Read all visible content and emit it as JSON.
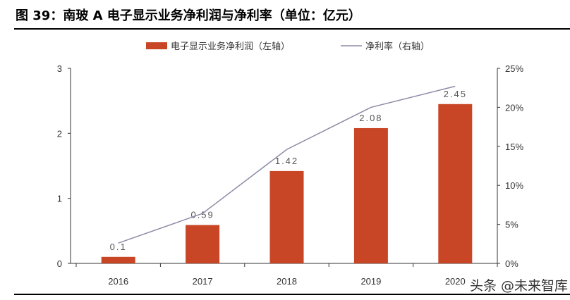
{
  "title": "图 39：南玻 A 电子显示业务净利润与净利率（单位：亿元）",
  "watermark": "头条 @未来智库",
  "colors": {
    "bar": "#C84625",
    "line": "#8C8CA8",
    "axis": "#333333"
  },
  "chart_data": {
    "type": "bar+line",
    "categories": [
      "2016",
      "2017",
      "2018",
      "2019",
      "2020"
    ],
    "series": [
      {
        "name": "电子显示业务净利润（左轴）",
        "type": "bar",
        "axis": "left",
        "values": [
          0.1,
          0.59,
          1.42,
          2.08,
          2.45
        ],
        "labels": [
          "0.1",
          "0.59",
          "1.42",
          "2.08",
          "2.45"
        ]
      },
      {
        "name": "净利率（右轴）",
        "type": "line",
        "axis": "right",
        "values": [
          2.6,
          6.4,
          14.6,
          20.0,
          22.7
        ]
      }
    ],
    "left_axis": {
      "ylim": [
        0,
        3
      ],
      "ticks": [
        "0",
        "1",
        "2",
        "3"
      ]
    },
    "right_axis": {
      "ylim": [
        0,
        25
      ],
      "ticks": [
        "0%",
        "5%",
        "10%",
        "15%",
        "20%",
        "25%"
      ]
    },
    "legend": "top",
    "grid": false
  }
}
